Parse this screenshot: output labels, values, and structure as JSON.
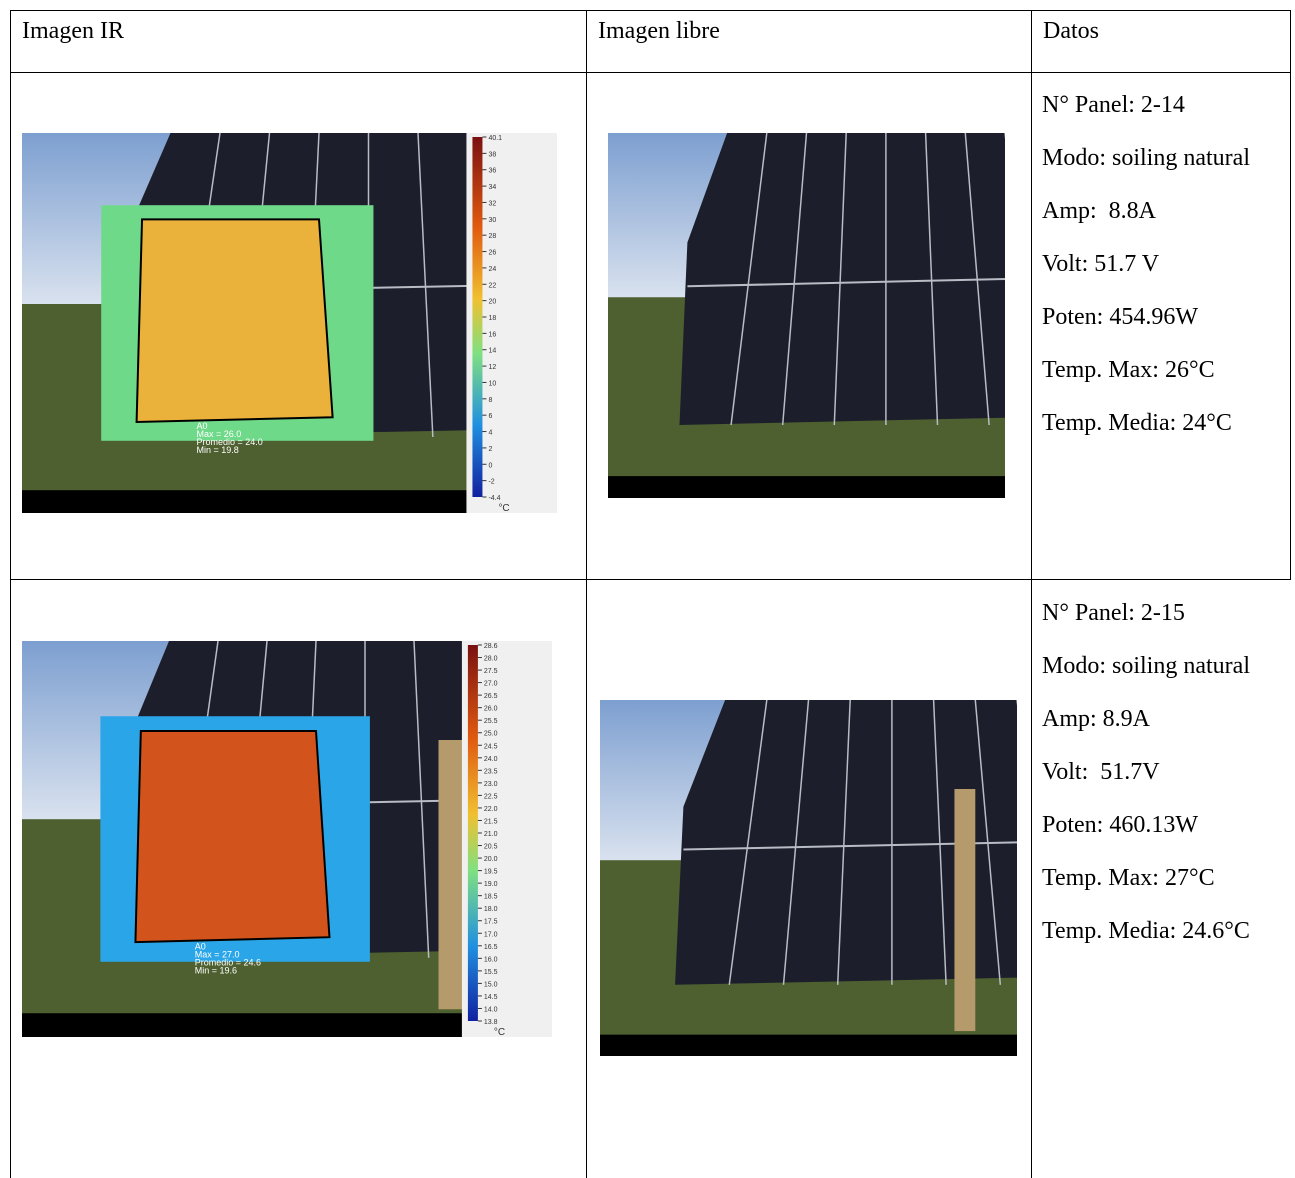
{
  "table": {
    "header": [
      "Imagen IR",
      "Imagen libre",
      "Datos"
    ],
    "rows": [
      {
        "ir": {
          "scale": [
            "40.1",
            "38",
            "36",
            "34",
            "32",
            "30",
            "28",
            "26",
            "24",
            "22",
            "20",
            "18",
            "16",
            "14",
            "12",
            "10",
            "8",
            "6",
            "4",
            "2",
            "0",
            "-2",
            "-4.4"
          ],
          "unit": "°C",
          "region": "A0",
          "max": "Max = 26.0",
          "mean": "Promedio = 24.0",
          "min": "Min = 19.8"
        },
        "data": [
          "N° Panel: 2-14",
          "Modo: soiling natural",
          "Amp:  8.8A",
          "Volt: 51.7 V",
          "Poten: 454.96W",
          "Temp. Max: 26°C",
          "Temp. Media: 24°C"
        ]
      },
      {
        "ir": {
          "scale": [
            "28.6",
            "28.0",
            "27.5",
            "27.0",
            "26.5",
            "26.0",
            "25.5",
            "25.0",
            "24.5",
            "24.0",
            "23.5",
            "23.0",
            "22.5",
            "22.0",
            "21.5",
            "21.0",
            "20.5",
            "20.0",
            "19.5",
            "19.0",
            "18.5",
            "18.0",
            "17.5",
            "17.0",
            "16.5",
            "16.0",
            "15.5",
            "15.0",
            "14.5",
            "14.0",
            "13.8"
          ],
          "unit": "°C",
          "region": "A0",
          "max": "Max = 27.0",
          "mean": "Promedio = 24.6",
          "min": "Min = 19.6"
        },
        "data": [
          "N° Panel: 2-15",
          "Modo: soiling natural",
          "Amp: 8.9A",
          "Volt:  51.7V",
          "Poten: 460.13W",
          "Temp. Max: 27°C",
          "Temp. Media: 24.6°C"
        ]
      }
    ]
  }
}
